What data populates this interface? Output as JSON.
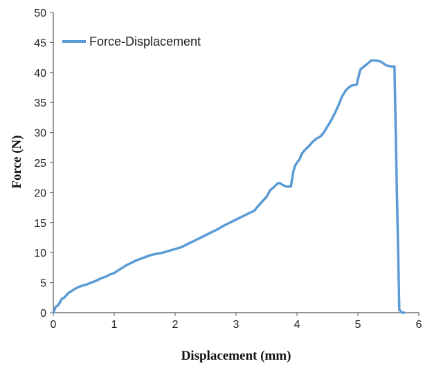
{
  "chart_data": {
    "type": "line",
    "xlabel": "Displacement (mm)",
    "ylabel": "Force (N)",
    "xlim": [
      0,
      6
    ],
    "ylim": [
      0,
      50
    ],
    "xticks": [
      0,
      1,
      2,
      3,
      4,
      5,
      6
    ],
    "yticks": [
      0,
      5,
      10,
      15,
      20,
      25,
      30,
      35,
      40,
      45,
      50
    ],
    "grid": false,
    "legend_position": "top-left",
    "series": [
      {
        "name": "Force-Displacement",
        "color": "#5b9bd5",
        "x": [
          0,
          0.04,
          0.08,
          0.14,
          0.18,
          0.25,
          0.3,
          0.36,
          0.42,
          0.48,
          0.55,
          0.62,
          0.7,
          0.78,
          0.86,
          0.94,
          1.0,
          1.06,
          1.12,
          1.2,
          1.28,
          1.36,
          1.44,
          1.52,
          1.6,
          1.7,
          1.8,
          1.9,
          2.0,
          2.1,
          2.2,
          2.3,
          2.4,
          2.5,
          2.6,
          2.7,
          2.8,
          2.9,
          3.0,
          3.1,
          3.2,
          3.3,
          3.4,
          3.5,
          3.56,
          3.62,
          3.68,
          3.72,
          3.76,
          3.82,
          3.9,
          3.94,
          3.97,
          4.0,
          4.04,
          4.08,
          4.14,
          4.2,
          4.26,
          4.32,
          4.38,
          4.44,
          4.5,
          4.56,
          4.62,
          4.68,
          4.74,
          4.8,
          4.86,
          4.92,
          4.98,
          5.04,
          5.1,
          5.16,
          5.22,
          5.3,
          5.38,
          5.46,
          5.54,
          5.6,
          5.64,
          5.68,
          5.72,
          5.76
        ],
        "y": [
          0,
          1.0,
          1.2,
          2.3,
          2.5,
          3.3,
          3.6,
          4.0,
          4.3,
          4.5,
          4.7,
          5.0,
          5.3,
          5.7,
          6.0,
          6.4,
          6.6,
          7.0,
          7.4,
          7.9,
          8.3,
          8.7,
          9.0,
          9.3,
          9.6,
          9.8,
          10.0,
          10.3,
          10.6,
          10.9,
          11.4,
          11.9,
          12.4,
          12.9,
          13.4,
          13.9,
          14.5,
          15.0,
          15.5,
          16.0,
          16.5,
          17.0,
          18.2,
          19.3,
          20.4,
          20.9,
          21.5,
          21.6,
          21.3,
          21.0,
          21.0,
          23.5,
          24.5,
          25.0,
          25.5,
          26.5,
          27.2,
          27.8,
          28.5,
          29.0,
          29.3,
          30.0,
          31.0,
          32.0,
          33.2,
          34.5,
          36.0,
          37.0,
          37.6,
          37.9,
          38.0,
          40.5,
          41.0,
          41.5,
          42.0,
          42.0,
          41.8,
          41.2,
          41.0,
          41.0,
          20.0,
          0.5,
          0,
          0
        ]
      }
    ]
  }
}
